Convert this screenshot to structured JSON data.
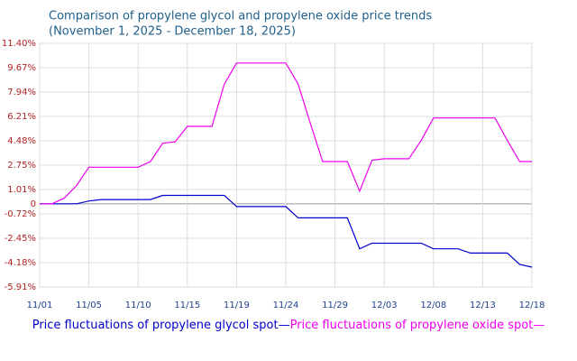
{
  "chart_data": {
    "type": "line",
    "title": "Comparison of propylene glycol and propylene oxide price trends",
    "subtitle": "(November 1, 2025 - December 18, 2025)",
    "categories": [
      "11/01",
      null,
      null,
      null,
      "11/05",
      null,
      null,
      null,
      "11/10",
      null,
      null,
      null,
      "11/15",
      null,
      null,
      null,
      "11/19",
      null,
      null,
      null,
      "11/24",
      null,
      null,
      null,
      "11/29",
      null,
      null,
      null,
      "12/03",
      null,
      null,
      null,
      "12/08",
      null,
      null,
      null,
      "12/13",
      null,
      null,
      null,
      "12/18"
    ],
    "series": [
      {
        "name": "Price fluctuations of propylene glycol spot—",
        "color": "#0000cc",
        "values": [
          0,
          0,
          0,
          0,
          0.2,
          0.3,
          0.3,
          0.3,
          0.3,
          0.3,
          0.6,
          0.6,
          0.6,
          0.6,
          0.6,
          0.6,
          -0.2,
          -0.2,
          -0.2,
          -0.2,
          -0.2,
          -1.0,
          -1.0,
          -1.0,
          -1.0,
          -1.0,
          -3.2,
          -2.8,
          -2.8,
          -2.8,
          -2.8,
          -2.8,
          -3.2,
          -3.2,
          -3.2,
          -3.5,
          -3.5,
          -3.5,
          -3.5,
          -4.3,
          -4.5
        ]
      },
      {
        "name": "Price fluctuations of propylene oxide spot—",
        "color": "#ee00ee",
        "values": [
          0,
          0,
          0.4,
          1.3,
          2.6,
          2.6,
          2.6,
          2.6,
          2.6,
          3.0,
          4.3,
          4.4,
          5.5,
          5.5,
          5.5,
          8.5,
          10.0,
          10.0,
          10.0,
          10.0,
          10.0,
          8.5,
          5.7,
          3.0,
          3.0,
          3.0,
          0.9,
          3.1,
          3.2,
          3.2,
          3.2,
          4.5,
          6.1,
          6.1,
          6.1,
          6.1,
          6.1,
          6.1,
          4.5,
          3.0,
          3.0
        ]
      }
    ],
    "ylim": [
      -5.91,
      11.4
    ],
    "yticks": [
      {
        "value": 11.4,
        "label": "11.40%"
      },
      {
        "value": 9.67,
        "label": "9.67%"
      },
      {
        "value": 7.94,
        "label": "7.94%"
      },
      {
        "value": 6.21,
        "label": "6.21%"
      },
      {
        "value": 4.48,
        "label": "4.48%"
      },
      {
        "value": 2.75,
        "label": "2.75%"
      },
      {
        "value": 1.01,
        "label": "1.01%"
      },
      0,
      {
        "value": -0.72,
        "label": "-0.72%"
      },
      {
        "value": -2.45,
        "label": "-2.45%"
      },
      {
        "value": -4.18,
        "label": "-4.18%"
      },
      {
        "value": -5.91,
        "label": "-5.91%"
      }
    ],
    "grid": true
  }
}
